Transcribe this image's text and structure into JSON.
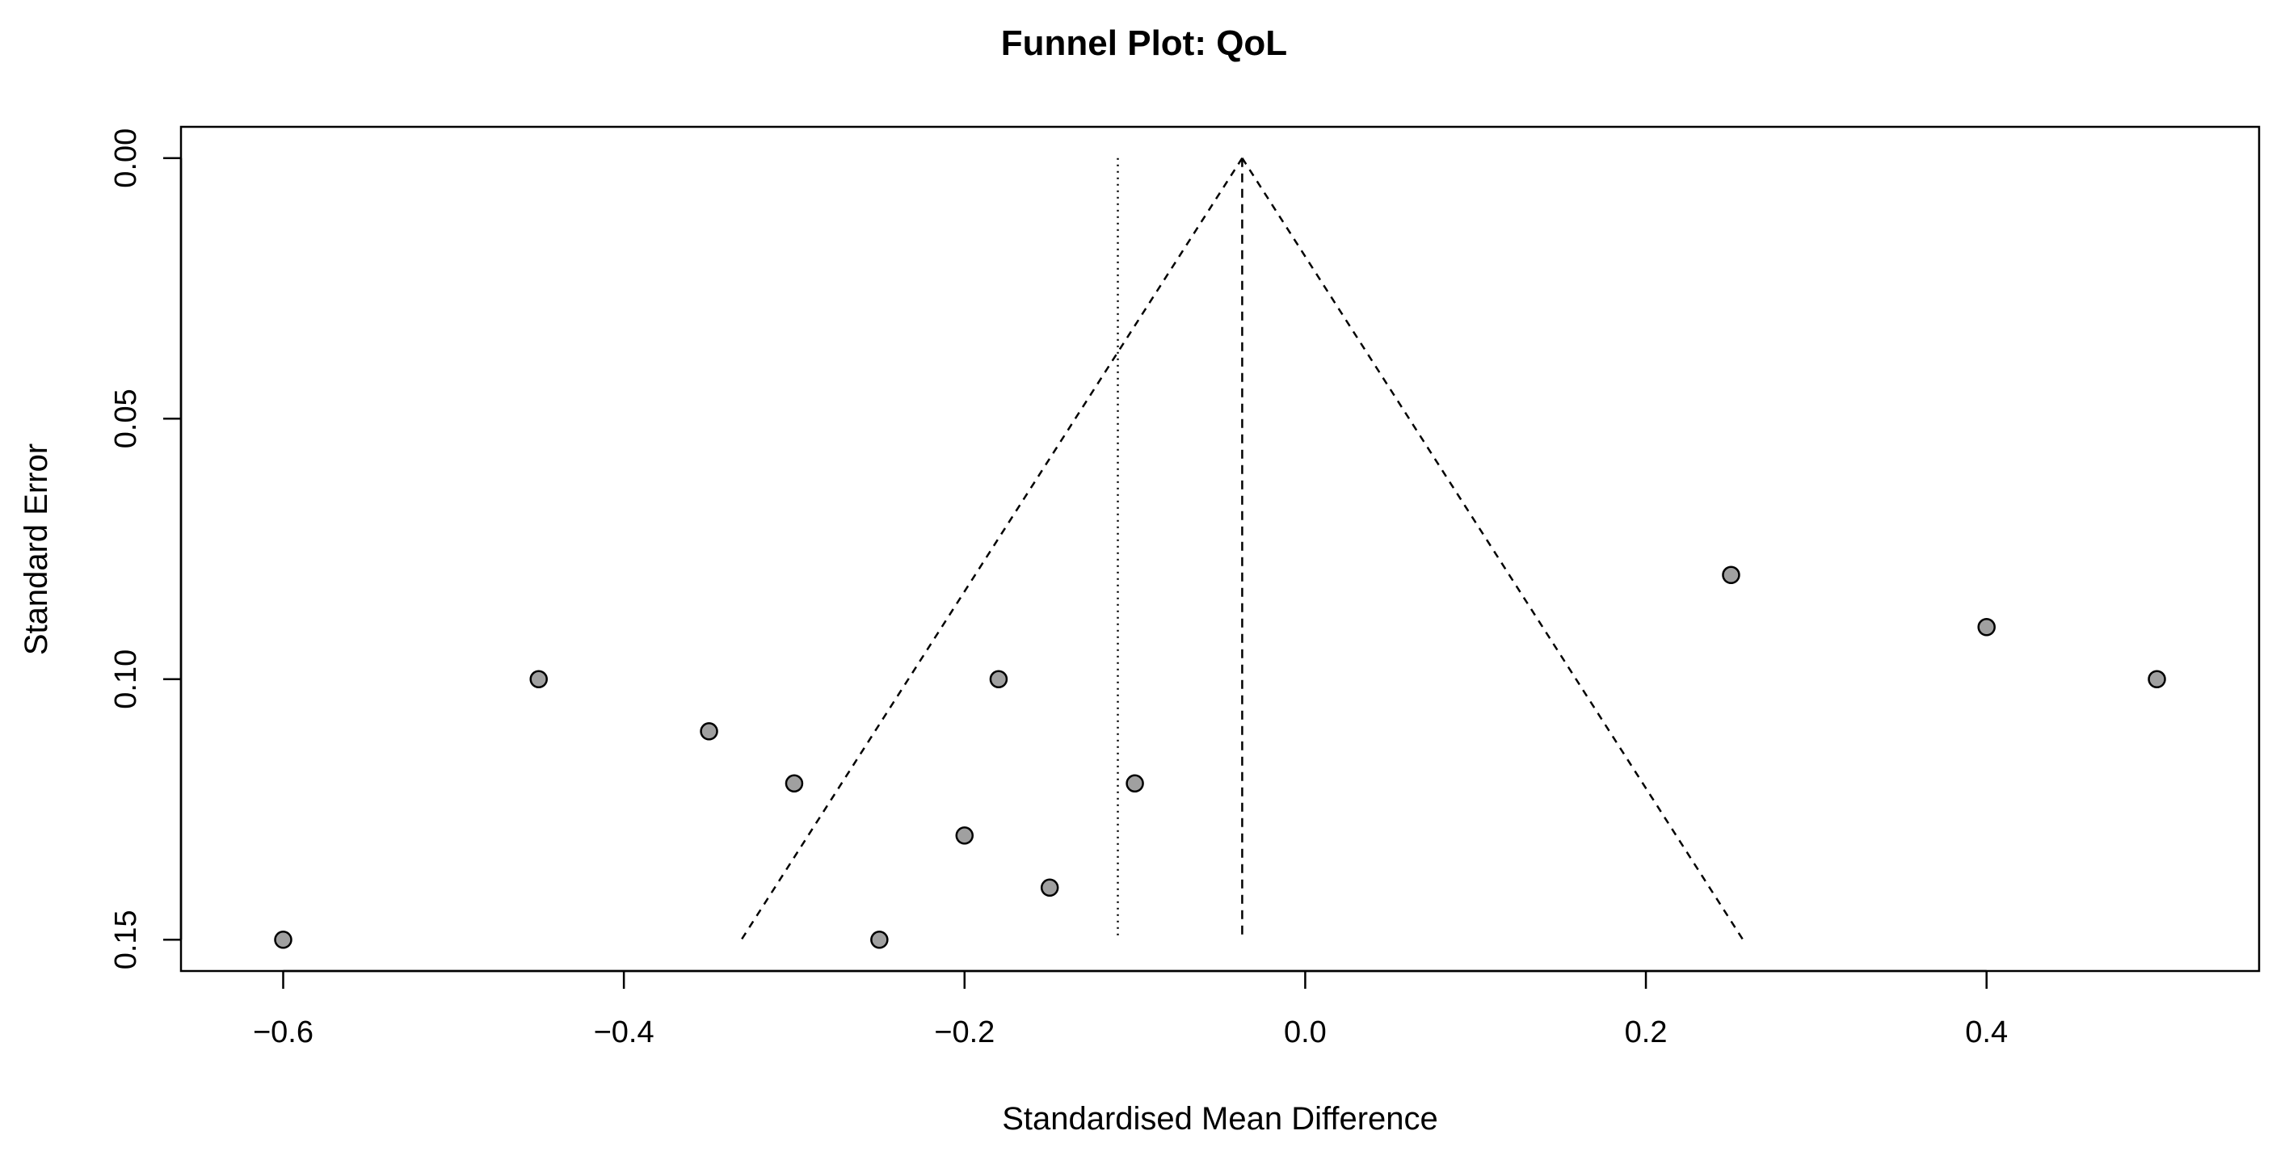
{
  "chart_data": {
    "type": "scatter",
    "title": "Funnel Plot: QoL",
    "xlabel": "Standardised Mean Difference",
    "ylabel": "Standard Error",
    "xlim": [
      -0.66,
      0.56
    ],
    "ylim": [
      0.156,
      -0.006
    ],
    "y_inverted": true,
    "x_ticks": [
      -0.6,
      -0.4,
      -0.2,
      0.0,
      0.2,
      0.4
    ],
    "x_tick_labels": [
      "−0.6",
      "−0.4",
      "−0.2",
      "0.0",
      "0.2",
      "0.4"
    ],
    "y_ticks": [
      0.0,
      0.05,
      0.1,
      0.15
    ],
    "y_tick_labels": [
      "0.00",
      "0.05",
      "0.10",
      "0.15"
    ],
    "grid": false,
    "points": [
      {
        "x": -0.6,
        "y": 0.15
      },
      {
        "x": -0.45,
        "y": 0.1
      },
      {
        "x": -0.35,
        "y": 0.11
      },
      {
        "x": -0.3,
        "y": 0.12
      },
      {
        "x": -0.25,
        "y": 0.15
      },
      {
        "x": -0.2,
        "y": 0.13
      },
      {
        "x": -0.18,
        "y": 0.1
      },
      {
        "x": -0.15,
        "y": 0.14
      },
      {
        "x": -0.1,
        "y": 0.12
      },
      {
        "x": 0.25,
        "y": 0.08
      },
      {
        "x": 0.4,
        "y": 0.09
      },
      {
        "x": 0.5,
        "y": 0.1
      }
    ],
    "pooled_estimate": -0.037,
    "random_effects_estimate": -0.11,
    "funnel_se_max": 0.15,
    "funnel_z": 1.96,
    "colors": {
      "point_fill": "#a0a0a0",
      "point_stroke": "#000000",
      "line": "#000000"
    }
  }
}
